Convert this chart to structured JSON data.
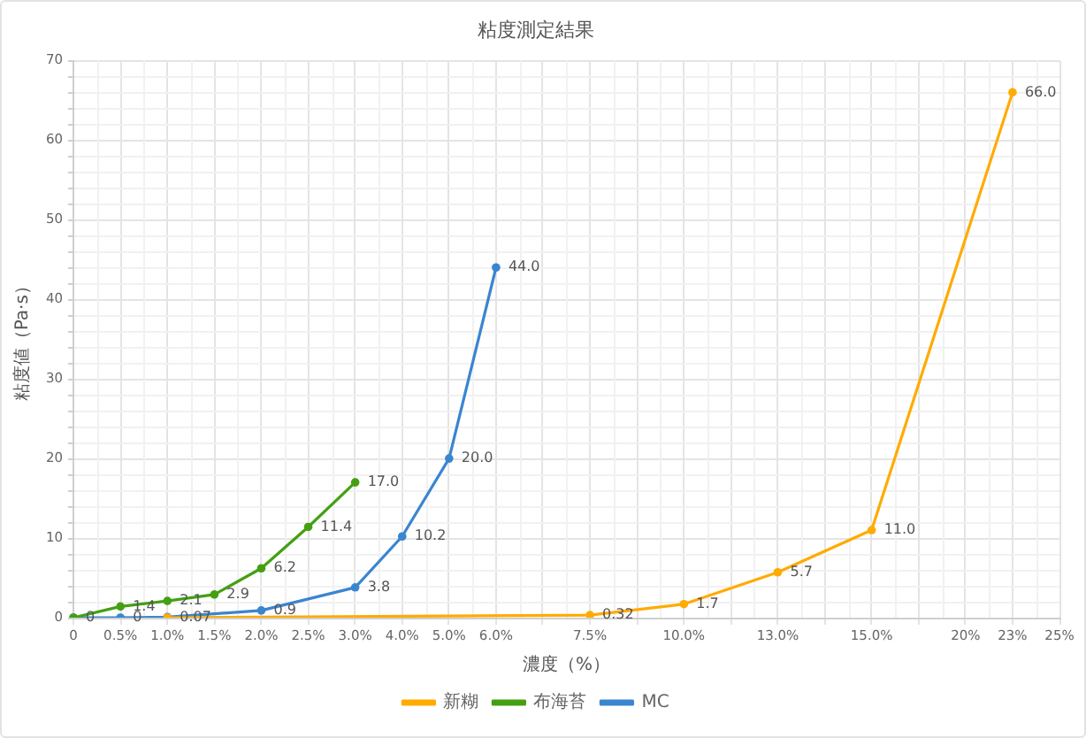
{
  "chart_data": {
    "type": "line",
    "title": "粘度測定結果",
    "xlabel": "濃度（%）",
    "ylabel": "粘度値（Pa·s）",
    "categories": [
      "0",
      "0.5%",
      "1.0%",
      "1.5%",
      "2.0%",
      "2.5%",
      "3.0%",
      "4.0%",
      "5.0%",
      "6.0%",
      null,
      "7.5%",
      null,
      "10.0%",
      null,
      "13.0%",
      null,
      "15.0%",
      null,
      "20%",
      "23%",
      "25%"
    ],
    "series": [
      {
        "name": "新糊",
        "color": "#ffab00",
        "values": [
          null,
          null,
          0,
          null,
          null,
          null,
          null,
          null,
          null,
          null,
          null,
          0.32,
          null,
          1.7,
          null,
          5.7,
          null,
          11.0,
          null,
          null,
          66.0,
          null
        ],
        "value_labels": [
          null,
          null,
          null,
          null,
          null,
          null,
          null,
          null,
          null,
          null,
          null,
          "0.32",
          null,
          "1.7",
          null,
          "5.7",
          null,
          "11.0",
          null,
          null,
          "66.0",
          null
        ]
      },
      {
        "name": "布海苔",
        "color": "#44a012",
        "values": [
          0,
          1.4,
          2.1,
          2.9,
          6.2,
          11.4,
          17.0,
          null,
          null,
          null,
          null,
          null,
          null,
          null,
          null,
          null,
          null,
          null,
          null,
          null,
          null,
          null
        ],
        "value_labels": [
          null,
          "1.4",
          "2.1",
          "2.9",
          "6.2",
          "11.4",
          "17.0",
          null,
          null,
          null,
          null,
          null,
          null,
          null,
          null,
          null,
          null,
          null,
          null,
          null,
          null,
          null
        ]
      },
      {
        "name": "MC",
        "color": "#3a85d0",
        "values": [
          0,
          0,
          0.07,
          null,
          0.9,
          null,
          3.8,
          10.2,
          20.0,
          44.0,
          null,
          null,
          null,
          null,
          null,
          null,
          null,
          null,
          null,
          null,
          null,
          null
        ],
        "value_labels": [
          "0",
          "0",
          "0.07",
          null,
          "0.9",
          null,
          "3.8",
          "10.2",
          "20.0",
          "44.0",
          null,
          null,
          null,
          null,
          null,
          null,
          null,
          null,
          null,
          null,
          null,
          null
        ]
      }
    ],
    "ylim": [
      0,
      70
    ],
    "yticks": [
      0,
      {
        "value": 2,
        "label": null
      },
      {
        "value": 4,
        "label": null
      },
      {
        "value": 6,
        "label": null
      },
      {
        "value": 8,
        "label": null
      },
      10,
      {
        "value": 12,
        "label": null
      },
      {
        "value": 14,
        "label": null
      },
      {
        "value": 16,
        "label": null
      },
      {
        "value": 18,
        "label": null
      },
      20,
      {
        "value": 22,
        "label": null
      },
      {
        "value": 24,
        "label": null
      },
      {
        "value": 26,
        "label": null
      },
      {
        "value": 28,
        "label": null
      },
      30,
      {
        "value": 32,
        "label": null
      },
      {
        "value": 34,
        "label": null
      },
      {
        "value": 36,
        "label": null
      },
      {
        "value": 38,
        "label": null
      },
      40,
      {
        "value": 42,
        "label": null
      },
      {
        "value": 44,
        "label": null
      },
      {
        "value": 46,
        "label": null
      },
      {
        "value": 48,
        "label": null
      },
      50,
      {
        "value": 52,
        "label": null
      },
      {
        "value": 54,
        "label": null
      },
      {
        "value": 56,
        "label": null
      },
      {
        "value": 58,
        "label": null
      },
      60,
      {
        "value": 62,
        "label": null
      },
      {
        "value": 64,
        "label": null
      },
      {
        "value": 66,
        "label": null
      },
      {
        "value": 68,
        "label": null
      },
      70
    ],
    "grid": true,
    "legend": "bottom",
    "marker": "circle",
    "line_style": "solid"
  }
}
